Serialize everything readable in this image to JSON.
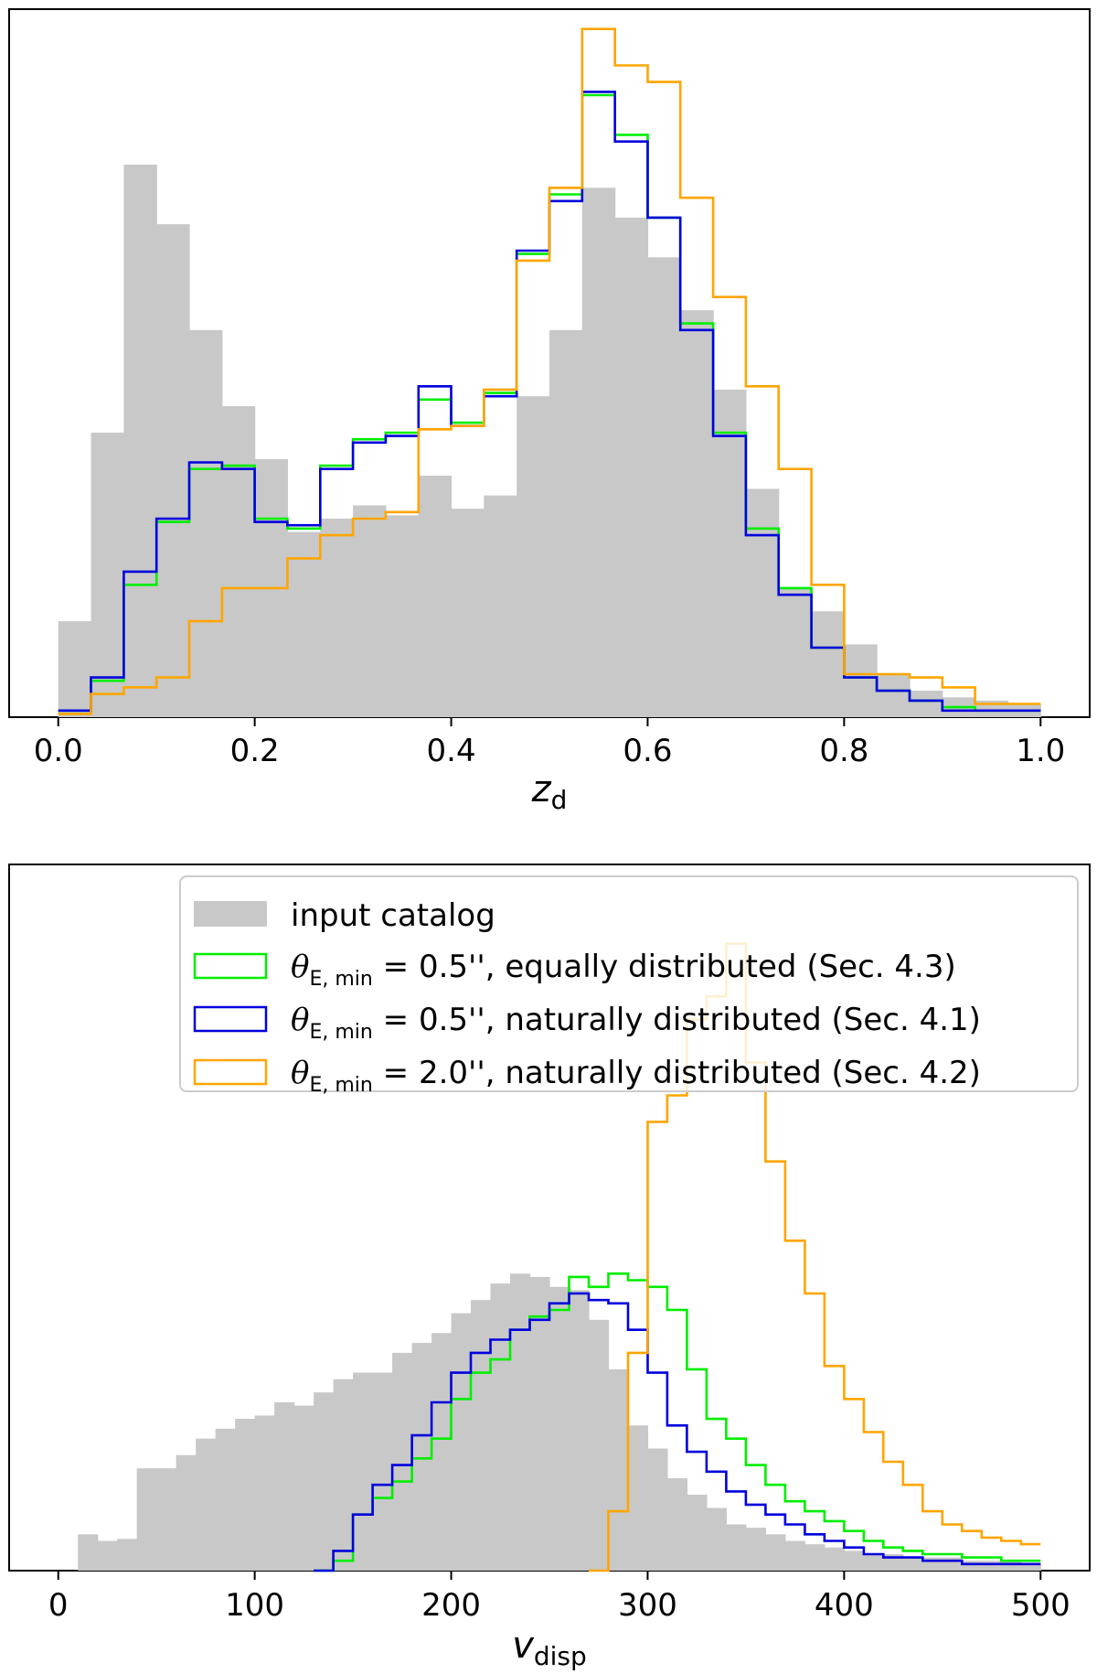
{
  "chart_data": [
    {
      "type": "histogram",
      "xlabel": "z",
      "xlabel_sub": "d",
      "xlim": [
        -0.05,
        1.05
      ],
      "ylim": [
        0,
        1.07
      ],
      "y_ticks_visible": false,
      "x_ticks": [
        "0.0",
        "0.2",
        "0.4",
        "0.6",
        "0.8",
        "1.0"
      ],
      "bin_edges": [
        0,
        0.0333,
        0.0667,
        0.1,
        0.1333,
        0.1667,
        0.2,
        0.2333,
        0.2667,
        0.3,
        0.3333,
        0.3667,
        0.4,
        0.4333,
        0.4667,
        0.5,
        0.5333,
        0.5667,
        0.6,
        0.6333,
        0.6667,
        0.7,
        0.7333,
        0.7667,
        0.8,
        0.8333,
        0.8667,
        0.9,
        0.9333,
        0.9667,
        1.0
      ],
      "series": [
        {
          "name": "input catalog",
          "style": "filled",
          "color": "#c8c8c8",
          "values": [
            0.145,
            0.43,
            0.835,
            0.745,
            0.585,
            0.47,
            0.39,
            0.28,
            0.3,
            0.32,
            0.305,
            0.365,
            0.315,
            0.335,
            0.485,
            0.585,
            0.8,
            0.755,
            0.695,
            0.615,
            0.495,
            0.345,
            0.195,
            0.16,
            0.11,
            0.065,
            0.04,
            0.03,
            0.025,
            0.02
          ]
        },
        {
          "name": "θE,min = 0.5'', equally distributed (Sec. 4.3)",
          "style": "step",
          "color": "#00ee00",
          "values": [
            0.01,
            0.055,
            0.2,
            0.295,
            0.375,
            0.38,
            0.3,
            0.285,
            0.38,
            0.42,
            0.43,
            0.48,
            0.445,
            0.49,
            0.7,
            0.79,
            0.94,
            0.88,
            0.755,
            0.595,
            0.43,
            0.285,
            0.195,
            0.105,
            0.06,
            0.04,
            0.025,
            0.015,
            0.01,
            0.01
          ]
        },
        {
          "name": "θE,min = 0.5'', naturally distributed (Sec. 4.1)",
          "style": "step",
          "color": "#0000dd",
          "values": [
            0.01,
            0.06,
            0.22,
            0.3,
            0.385,
            0.375,
            0.295,
            0.29,
            0.375,
            0.415,
            0.425,
            0.5,
            0.44,
            0.485,
            0.705,
            0.78,
            0.945,
            0.87,
            0.755,
            0.585,
            0.425,
            0.275,
            0.185,
            0.105,
            0.06,
            0.04,
            0.025,
            0.01,
            0.01,
            0.01
          ]
        },
        {
          "name": "θE,min = 2.0'', naturally distributed (Sec. 4.2)",
          "style": "step",
          "color": "#ffa500",
          "values": [
            0.005,
            0.035,
            0.045,
            0.06,
            0.145,
            0.195,
            0.195,
            0.24,
            0.275,
            0.3,
            0.31,
            0.435,
            0.44,
            0.495,
            0.69,
            0.8,
            1.04,
            0.985,
            0.96,
            0.785,
            0.635,
            0.5,
            0.375,
            0.2,
            0.065,
            0.065,
            0.06,
            0.045,
            0.02,
            0.02
          ]
        }
      ]
    },
    {
      "type": "histogram",
      "xlabel": "v",
      "xlabel_sub": "disp",
      "xlim": [
        -25,
        525
      ],
      "ylim": [
        0,
        1.07
      ],
      "y_ticks_visible": false,
      "x_ticks": [
        "0",
        "100",
        "200",
        "300",
        "400",
        "500"
      ],
      "bin_start": 10,
      "bin_width": 10,
      "legend_position": "top-right",
      "legend": [
        {
          "symbol": "θ",
          "sub": "E, min",
          "text": " = 0.5'', equally distributed (Sec. 4.3)",
          "series": 1
        },
        {
          "symbol": "θ",
          "sub": "E, min",
          "text": " = 0.5'', naturally distributed (Sec. 4.1)",
          "series": 2
        },
        {
          "symbol": "θ",
          "sub": "E, min",
          "text": " = 2.0'', naturally distributed (Sec. 4.2)",
          "series": 3
        }
      ],
      "legend_label_catalog": "input catalog",
      "series": [
        {
          "name": "input catalog",
          "style": "filled",
          "color": "#c8c8c8",
          "values": [
            0.055,
            0.045,
            0.048,
            0.155,
            0.155,
            0.175,
            0.2,
            0.215,
            0.23,
            0.235,
            0.255,
            0.25,
            0.27,
            0.29,
            0.3,
            0.3,
            0.33,
            0.345,
            0.36,
            0.39,
            0.41,
            0.435,
            0.45,
            0.445,
            0.43,
            0.425,
            0.38,
            0.305,
            0.22,
            0.185,
            0.14,
            0.115,
            0.095,
            0.07,
            0.065,
            0.055,
            0.045,
            0.04,
            0.035,
            0.03,
            0.025,
            0.025,
            0.02,
            0.02,
            0.02,
            0.015,
            0.015,
            0.015,
            0.01
          ]
        },
        {
          "name": "θE,min = 0.5'', equally distributed",
          "style": "step",
          "color": "#00ee00",
          "start_bin": 12,
          "values": [
            0.0,
            0.015,
            0.085,
            0.11,
            0.135,
            0.17,
            0.2,
            0.26,
            0.3,
            0.32,
            0.365,
            0.385,
            0.395,
            0.445,
            0.43,
            0.45,
            0.44,
            0.43,
            0.395,
            0.305,
            0.23,
            0.2,
            0.16,
            0.13,
            0.105,
            0.09,
            0.075,
            0.06,
            0.045,
            0.035,
            0.03,
            0.025,
            0.025,
            0.02,
            0.02,
            0.015,
            0.015
          ]
        },
        {
          "name": "θE,min = 0.5'', naturally distributed",
          "style": "step",
          "color": "#0000dd",
          "start_bin": 12,
          "values": [
            0.0,
            0.03,
            0.085,
            0.13,
            0.16,
            0.205,
            0.255,
            0.3,
            0.33,
            0.35,
            0.365,
            0.38,
            0.405,
            0.42,
            0.41,
            0.405,
            0.365,
            0.3,
            0.22,
            0.18,
            0.15,
            0.12,
            0.1,
            0.085,
            0.07,
            0.055,
            0.045,
            0.035,
            0.025,
            0.02,
            0.02,
            0.015,
            0.015,
            0.01,
            0.01,
            0.01,
            0.01
          ]
        },
        {
          "name": "θE,min = 2.0'', naturally distributed",
          "style": "step",
          "color": "#ffa500",
          "start_bin": 26,
          "values": [
            0.0,
            0.09,
            0.33,
            0.68,
            0.72,
            0.835,
            0.87,
            0.95,
            0.77,
            0.62,
            0.5,
            0.42,
            0.31,
            0.26,
            0.21,
            0.165,
            0.13,
            0.09,
            0.07,
            0.06,
            0.05,
            0.045,
            0.04
          ]
        }
      ]
    }
  ]
}
